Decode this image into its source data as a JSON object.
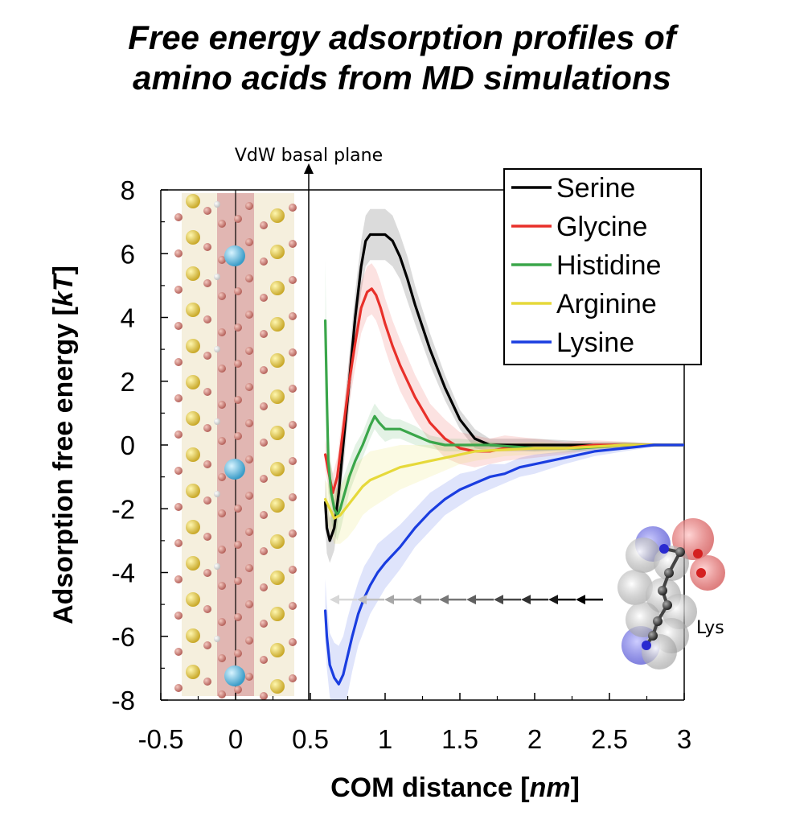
{
  "title": {
    "line1": "Free energy adsorption profiles of",
    "line2": "amino acids from MD simulations"
  },
  "annotations": {
    "vdw_plane": "VdW basal plane",
    "molecule_label": "Lys"
  },
  "chart_data": {
    "type": "line",
    "title": "Free energy adsorption profiles of amino acids from MD simulations",
    "xlabel_prefix": "COM distance [",
    "xlabel_unit": "nm",
    "xlabel_suffix": "]",
    "ylabel_prefix": "Adsorption free energy [",
    "ylabel_unit": "kT",
    "ylabel_suffix": "]",
    "xlim": [
      -0.5,
      3
    ],
    "ylim": [
      -8,
      8
    ],
    "xticks": [
      -0.5,
      0,
      0.5,
      1,
      1.5,
      2,
      2.5,
      3
    ],
    "xtick_labels": [
      "-0.5",
      "0",
      "0.5",
      "1",
      "1.5",
      "2",
      "2.5",
      "3"
    ],
    "yticks": [
      8,
      6,
      4,
      2,
      0,
      -2,
      -4,
      -6,
      -8
    ],
    "ytick_labels": [
      "8",
      "6",
      "4",
      "2",
      "0",
      "-2",
      "-4",
      "-6",
      "-8"
    ],
    "legend_position": "top-right",
    "series": [
      {
        "name": "Serine",
        "color": "#000000",
        "x": [
          0.6,
          0.61,
          0.63,
          0.66,
          0.69,
          0.72,
          0.76,
          0.8,
          0.84,
          0.87,
          0.9,
          0.95,
          1.0,
          1.05,
          1.1,
          1.15,
          1.2,
          1.3,
          1.4,
          1.5,
          1.6,
          1.7,
          1.8,
          2.0,
          2.2,
          2.4,
          2.6,
          2.8,
          3.0
        ],
        "y": [
          -1.8,
          -2.6,
          -3.0,
          -2.6,
          -1.5,
          0.0,
          2.0,
          4.0,
          5.6,
          6.4,
          6.6,
          6.6,
          6.6,
          6.4,
          5.9,
          5.2,
          4.4,
          3.0,
          1.8,
          0.8,
          0.2,
          0.0,
          0.0,
          0.0,
          0.0,
          0.0,
          0.0,
          0.0,
          0.0
        ],
        "err": [
          0.8,
          0.8,
          0.7,
          0.7,
          0.7,
          0.8,
          0.8,
          0.8,
          0.8,
          0.8,
          0.8,
          0.8,
          0.8,
          0.8,
          0.7,
          0.7,
          0.6,
          0.5,
          0.4,
          0.3,
          0.3,
          0.2,
          0.2,
          0.2,
          0.15,
          0.1,
          0.1,
          0.05,
          0.0
        ]
      },
      {
        "name": "Glycine",
        "color": "#e8302a",
        "x": [
          0.6,
          0.62,
          0.65,
          0.68,
          0.72,
          0.76,
          0.8,
          0.84,
          0.88,
          0.91,
          0.94,
          0.97,
          1.0,
          1.05,
          1.1,
          1.2,
          1.3,
          1.4,
          1.5,
          1.6,
          1.7,
          1.8,
          2.0,
          2.2,
          2.4,
          2.6,
          2.8,
          3.0
        ],
        "y": [
          -0.3,
          -0.8,
          -1.5,
          -1.0,
          0.5,
          2.0,
          3.2,
          4.3,
          4.8,
          4.9,
          4.7,
          4.3,
          3.8,
          3.1,
          2.5,
          1.5,
          0.7,
          0.2,
          -0.1,
          -0.2,
          -0.2,
          -0.1,
          -0.1,
          -0.1,
          0.0,
          0.0,
          0.0,
          0.0
        ],
        "err": [
          0.5,
          0.5,
          0.6,
          0.6,
          0.6,
          0.7,
          0.8,
          0.8,
          0.8,
          0.8,
          0.8,
          0.8,
          0.8,
          0.8,
          0.8,
          0.7,
          0.6,
          0.6,
          0.5,
          0.5,
          0.4,
          0.4,
          0.3,
          0.2,
          0.15,
          0.1,
          0.05,
          0.0
        ]
      },
      {
        "name": "Histidine",
        "color": "#3aa64a",
        "x": [
          0.6,
          0.61,
          0.62,
          0.64,
          0.66,
          0.68,
          0.7,
          0.73,
          0.76,
          0.8,
          0.85,
          0.9,
          0.93,
          0.96,
          1.0,
          1.05,
          1.1,
          1.15,
          1.2,
          1.3,
          1.4,
          1.5,
          1.7,
          2.0,
          2.3,
          2.6,
          3.0
        ],
        "y": [
          3.9,
          1.5,
          -0.5,
          -1.5,
          -2.0,
          -2.2,
          -2.0,
          -1.5,
          -1.0,
          -0.5,
          0.0,
          0.6,
          0.9,
          0.7,
          0.5,
          0.5,
          0.5,
          0.4,
          0.3,
          0.1,
          0.0,
          0.0,
          0.0,
          -0.1,
          -0.1,
          0.0,
          0.0
        ],
        "err": [
          1.9,
          1.3,
          1.0,
          0.9,
          0.8,
          0.8,
          0.7,
          0.6,
          0.5,
          0.5,
          0.4,
          0.4,
          0.4,
          0.4,
          0.4,
          0.3,
          0.3,
          0.3,
          0.3,
          0.2,
          0.2,
          0.2,
          0.1,
          0.1,
          0.1,
          0.05,
          0.0
        ]
      },
      {
        "name": "Arginine",
        "color": "#e6d93a",
        "x": [
          0.6,
          0.63,
          0.66,
          0.7,
          0.75,
          0.8,
          0.85,
          0.9,
          1.0,
          1.1,
          1.2,
          1.3,
          1.4,
          1.5,
          1.6,
          1.8,
          2.0,
          2.2,
          2.4,
          2.6,
          2.8,
          3.0
        ],
        "y": [
          -1.7,
          -2.0,
          -2.3,
          -2.2,
          -1.9,
          -1.6,
          -1.3,
          -1.1,
          -0.9,
          -0.7,
          -0.6,
          -0.5,
          -0.4,
          -0.3,
          -0.2,
          -0.15,
          -0.1,
          -0.1,
          -0.05,
          0.0,
          0.0,
          0.0
        ],
        "err": [
          0.6,
          0.7,
          0.8,
          0.9,
          1.0,
          1.0,
          0.9,
          0.9,
          0.8,
          0.7,
          0.6,
          0.5,
          0.4,
          0.3,
          0.3,
          0.2,
          0.2,
          0.15,
          0.1,
          0.1,
          0.05,
          0.0
        ]
      },
      {
        "name": "Lysine",
        "color": "#1a3de0",
        "x": [
          0.6,
          0.61,
          0.63,
          0.66,
          0.69,
          0.72,
          0.75,
          0.78,
          0.82,
          0.86,
          0.9,
          0.95,
          1.0,
          1.1,
          1.2,
          1.3,
          1.4,
          1.5,
          1.6,
          1.7,
          1.8,
          1.9,
          2.0,
          2.2,
          2.4,
          2.6,
          2.8,
          3.0
        ],
        "y": [
          -5.2,
          -6.0,
          -6.9,
          -7.3,
          -7.5,
          -7.2,
          -6.6,
          -6.0,
          -5.3,
          -4.8,
          -4.4,
          -4.0,
          -3.7,
          -3.2,
          -2.6,
          -2.1,
          -1.7,
          -1.4,
          -1.2,
          -1.0,
          -0.9,
          -0.7,
          -0.6,
          -0.4,
          -0.2,
          -0.1,
          0.0,
          0.0
        ],
        "err": [
          1.0,
          1.0,
          1.0,
          1.1,
          1.2,
          1.2,
          1.2,
          1.1,
          1.0,
          1.0,
          0.9,
          0.9,
          0.8,
          0.7,
          0.6,
          0.6,
          0.5,
          0.5,
          0.4,
          0.4,
          0.3,
          0.3,
          0.3,
          0.2,
          0.15,
          0.1,
          0.05,
          0.0
        ]
      }
    ]
  }
}
